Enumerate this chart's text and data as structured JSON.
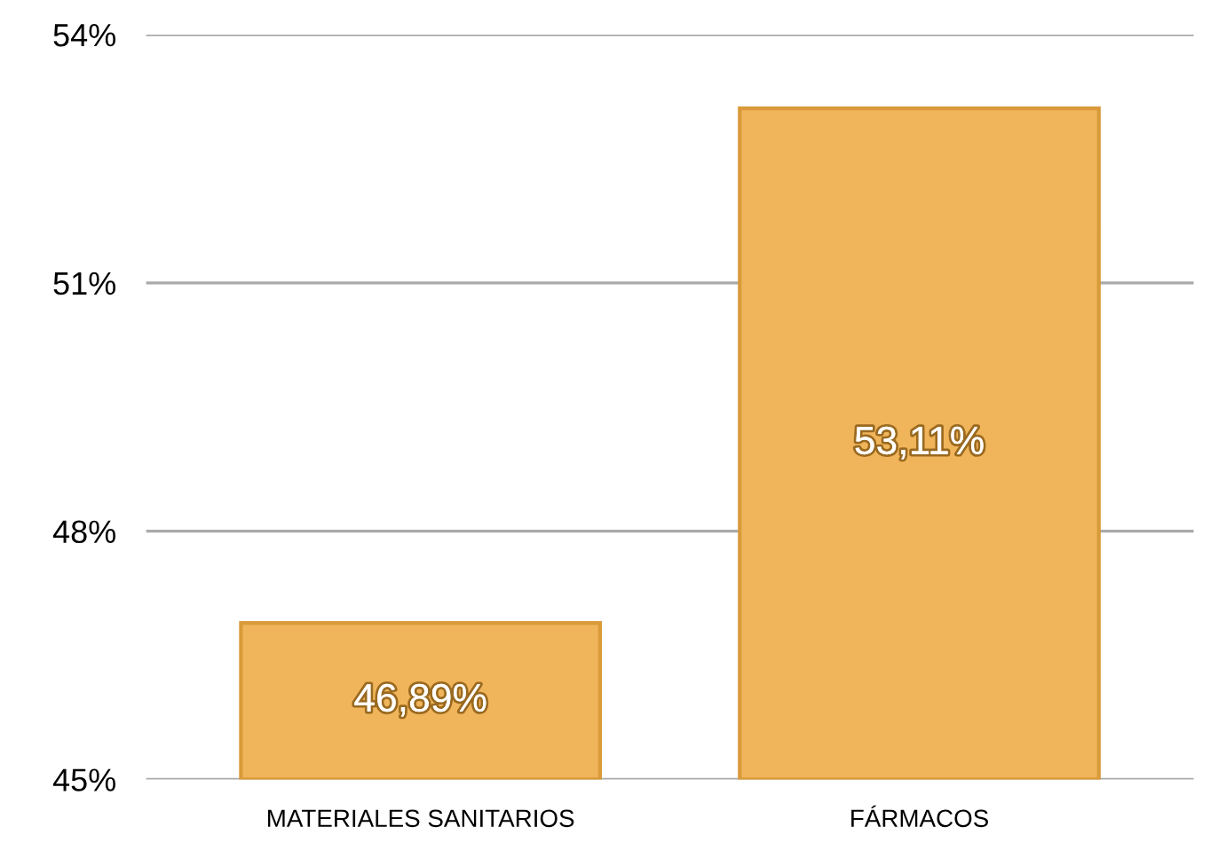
{
  "chart_data": {
    "type": "bar",
    "categories": [
      "MATERIALES SANITARIOS",
      "FÁRMACOS"
    ],
    "values": [
      46.89,
      53.11
    ],
    "value_labels": [
      "46,89%",
      "53,11%"
    ],
    "color": "#f0b45a",
    "ylim": [
      45,
      54
    ],
    "yticks": [
      {
        "value": 45,
        "label": "45%"
      },
      {
        "value": 48,
        "label": "48%"
      },
      {
        "value": 51,
        "label": "51%"
      },
      {
        "value": 54,
        "label": "54%"
      }
    ],
    "grid": "y"
  }
}
